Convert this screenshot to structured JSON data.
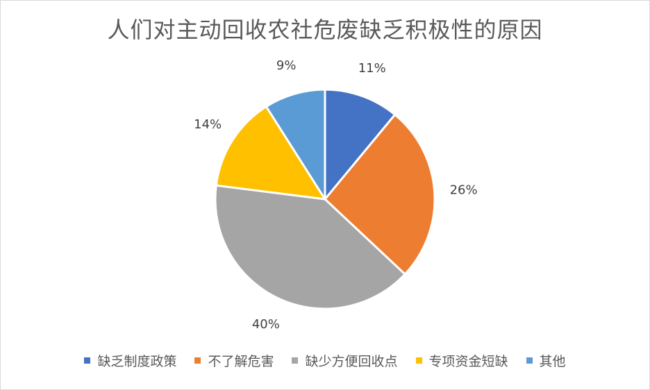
{
  "chart_data": {
    "type": "pie",
    "title": "人们对主动回收农社危废缺乏积极性的原因",
    "categories": [
      "缺乏制度政策",
      "不了解危害",
      "缺少方便回收点",
      "专项资金短缺",
      "其他"
    ],
    "values": [
      11,
      26,
      40,
      14,
      9
    ],
    "labels": [
      "11%",
      "26%",
      "40%",
      "14%",
      "9%"
    ],
    "colors": [
      "#4472C4",
      "#ED7D31",
      "#A5A5A5",
      "#FFC000",
      "#5B9BD5"
    ],
    "legend": "bottom"
  }
}
